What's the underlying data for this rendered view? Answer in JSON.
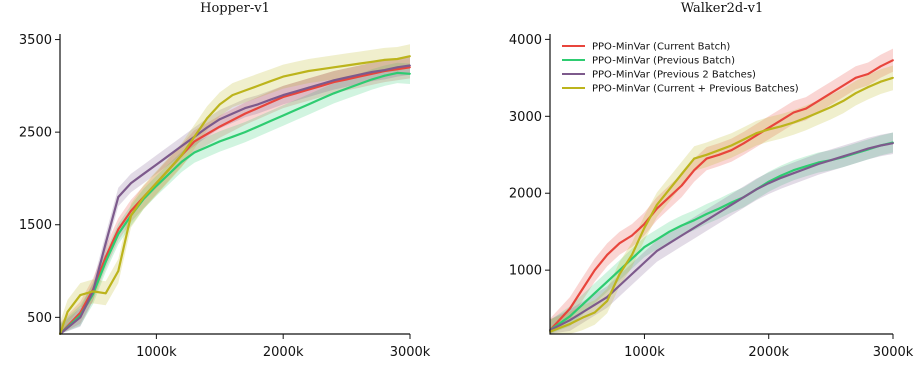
{
  "chart_data": [
    {
      "type": "line",
      "title": "Hopper-v1",
      "xlabel": "",
      "ylabel": "",
      "xlim": [
        240000,
        3000000
      ],
      "ylim": [
        320,
        3560
      ],
      "x_ticks": [
        1000000,
        2000000,
        3000000
      ],
      "x_tick_labels": [
        "1000k",
        "2000k",
        "3000k"
      ],
      "y_ticks": [
        500,
        1500,
        2500,
        3500
      ],
      "y_tick_labels": [
        "500",
        "1500",
        "2500",
        "3500"
      ],
      "grid": false,
      "legend": "none",
      "series": [
        {
          "color": "#e8453c",
          "band": 120,
          "x": [
            240000,
            400000,
            500000,
            600000,
            700000,
            800000,
            900000,
            1000000,
            1100000,
            1200000,
            1300000,
            1400000,
            1500000,
            1600000,
            1700000,
            1800000,
            1900000,
            2000000,
            2100000,
            2200000,
            2300000,
            2400000,
            2500000,
            2600000,
            2700000,
            2800000,
            2900000,
            3000000
          ],
          "y": [
            320,
            550,
            800,
            1150,
            1450,
            1650,
            1800,
            1950,
            2100,
            2250,
            2400,
            2480,
            2560,
            2630,
            2700,
            2760,
            2820,
            2880,
            2920,
            2960,
            3000,
            3040,
            3070,
            3100,
            3130,
            3160,
            3180,
            3200
          ]
        },
        {
          "color": "#2ecc71",
          "band": 110,
          "x": [
            240000,
            400000,
            500000,
            600000,
            700000,
            800000,
            900000,
            1000000,
            1100000,
            1200000,
            1300000,
            1400000,
            1500000,
            1600000,
            1700000,
            1800000,
            1900000,
            2000000,
            2100000,
            2200000,
            2300000,
            2400000,
            2500000,
            2600000,
            2700000,
            2800000,
            2900000,
            3000000
          ],
          "y": [
            320,
            520,
            750,
            1100,
            1400,
            1600,
            1780,
            1920,
            2050,
            2180,
            2280,
            2340,
            2400,
            2450,
            2500,
            2560,
            2620,
            2680,
            2740,
            2800,
            2860,
            2920,
            2970,
            3020,
            3070,
            3110,
            3140,
            3130
          ]
        },
        {
          "color": "#7d5a8c",
          "band": 100,
          "x": [
            240000,
            400000,
            500000,
            600000,
            700000,
            800000,
            900000,
            1000000,
            1100000,
            1200000,
            1300000,
            1400000,
            1500000,
            1600000,
            1700000,
            1800000,
            1900000,
            2000000,
            2100000,
            2200000,
            2300000,
            2400000,
            2500000,
            2600000,
            2700000,
            2800000,
            2900000,
            3000000
          ],
          "y": [
            320,
            500,
            780,
            1300,
            1800,
            1950,
            2050,
            2150,
            2250,
            2350,
            2450,
            2550,
            2640,
            2700,
            2760,
            2800,
            2850,
            2900,
            2940,
            2980,
            3020,
            3060,
            3090,
            3120,
            3150,
            3170,
            3200,
            3220
          ]
        },
        {
          "color": "#bcb41c",
          "band": 130,
          "x": [
            240000,
            300000,
            400000,
            500000,
            600000,
            700000,
            800000,
            900000,
            1000000,
            1100000,
            1200000,
            1300000,
            1400000,
            1500000,
            1600000,
            1700000,
            1800000,
            1900000,
            2000000,
            2100000,
            2200000,
            2300000,
            2400000,
            2500000,
            2600000,
            2700000,
            2800000,
            2900000,
            3000000
          ],
          "y": [
            320,
            560,
            740,
            780,
            760,
            1000,
            1600,
            1800,
            1950,
            2100,
            2250,
            2450,
            2650,
            2800,
            2900,
            2950,
            3000,
            3050,
            3100,
            3130,
            3160,
            3180,
            3200,
            3220,
            3240,
            3260,
            3280,
            3290,
            3320
          ]
        }
      ]
    },
    {
      "type": "line",
      "title": "Walker2d-v1",
      "xlabel": "",
      "ylabel": "",
      "xlim": [
        240000,
        3000000
      ],
      "ylim": [
        170,
        4070
      ],
      "x_ticks": [
        1000000,
        2000000,
        3000000
      ],
      "x_tick_labels": [
        "1000k",
        "2000k",
        "3000k"
      ],
      "y_ticks": [
        1000,
        2000,
        3000,
        4000
      ],
      "y_tick_labels": [
        "1000",
        "2000",
        "3000",
        "4000"
      ],
      "grid": false,
      "legend": "top-left",
      "series": [
        {
          "name": "PPO-MinVar (Current Batch)",
          "color": "#e8453c",
          "band": 150,
          "x": [
            240000,
            400000,
            500000,
            600000,
            700000,
            800000,
            900000,
            1000000,
            1100000,
            1200000,
            1300000,
            1400000,
            1500000,
            1600000,
            1700000,
            1800000,
            1900000,
            2000000,
            2100000,
            2200000,
            2300000,
            2400000,
            2500000,
            2600000,
            2700000,
            2800000,
            2900000,
            3000000
          ],
          "y": [
            220,
            500,
            750,
            1000,
            1200,
            1350,
            1450,
            1600,
            1800,
            1950,
            2100,
            2300,
            2450,
            2500,
            2560,
            2650,
            2750,
            2850,
            2950,
            3050,
            3100,
            3200,
            3300,
            3400,
            3500,
            3550,
            3650,
            3730
          ]
        },
        {
          "name": "PPO-MinVar (Previous Batch)",
          "color": "#2ecc71",
          "band": 130,
          "x": [
            240000,
            400000,
            500000,
            600000,
            700000,
            800000,
            900000,
            1000000,
            1100000,
            1200000,
            1300000,
            1400000,
            1500000,
            1600000,
            1700000,
            1800000,
            1900000,
            2000000,
            2100000,
            2200000,
            2300000,
            2400000,
            2500000,
            2600000,
            2700000,
            2800000,
            2900000,
            3000000
          ],
          "y": [
            220,
            400,
            550,
            700,
            850,
            1000,
            1150,
            1300,
            1400,
            1500,
            1580,
            1650,
            1730,
            1800,
            1880,
            1950,
            2050,
            2150,
            2230,
            2300,
            2350,
            2400,
            2430,
            2470,
            2520,
            2570,
            2620,
            2660
          ]
        },
        {
          "name": "PPO-MinVar (Previous 2 Batches)",
          "color": "#7d5a8c",
          "band": 140,
          "x": [
            240000,
            400000,
            500000,
            600000,
            700000,
            800000,
            900000,
            1000000,
            1100000,
            1200000,
            1300000,
            1400000,
            1500000,
            1600000,
            1700000,
            1800000,
            1900000,
            2000000,
            2100000,
            2200000,
            2300000,
            2400000,
            2500000,
            2600000,
            2700000,
            2800000,
            2900000,
            3000000
          ],
          "y": [
            220,
            350,
            450,
            550,
            650,
            800,
            950,
            1100,
            1250,
            1350,
            1450,
            1550,
            1650,
            1750,
            1850,
            1950,
            2050,
            2130,
            2200,
            2260,
            2320,
            2380,
            2430,
            2480,
            2530,
            2580,
            2620,
            2650
          ]
        },
        {
          "name": "PPO-MinVar (Current + Previous Batches)",
          "color": "#bcb41c",
          "band": 160,
          "x": [
            240000,
            400000,
            500000,
            600000,
            700000,
            800000,
            900000,
            1000000,
            1100000,
            1200000,
            1300000,
            1400000,
            1500000,
            1600000,
            1700000,
            1800000,
            1900000,
            2000000,
            2100000,
            2200000,
            2300000,
            2400000,
            2500000,
            2600000,
            2700000,
            2800000,
            2900000,
            3000000
          ],
          "y": [
            200,
            300,
            380,
            450,
            600,
            950,
            1200,
            1550,
            1850,
            2050,
            2250,
            2450,
            2500,
            2560,
            2620,
            2700,
            2780,
            2830,
            2870,
            2920,
            2980,
            3050,
            3120,
            3200,
            3300,
            3380,
            3450,
            3500
          ]
        }
      ]
    }
  ]
}
